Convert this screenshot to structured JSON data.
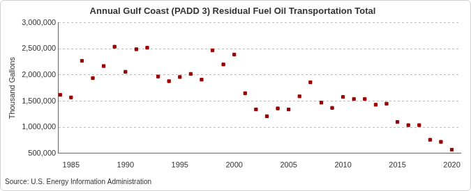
{
  "chart_data": {
    "type": "scatter",
    "title": "Annual Gulf Coast (PADD 3) Residual Fuel Oil Transportation Total",
    "y_label": "Thousand Gallons",
    "source": "Source: U.S. Energy Information Administration",
    "x": [
      1984,
      1985,
      1986,
      1987,
      1988,
      1989,
      1990,
      1991,
      1992,
      1993,
      1994,
      1995,
      1996,
      1997,
      1998,
      1999,
      2000,
      2001,
      2002,
      2003,
      2004,
      2005,
      2006,
      2007,
      2008,
      2009,
      2010,
      2011,
      2012,
      2013,
      2014,
      2015,
      2016,
      2017,
      2018,
      2019,
      2020
    ],
    "values": [
      1620000,
      1570000,
      2270000,
      1940000,
      2170000,
      2540000,
      2060000,
      2490000,
      2520000,
      1970000,
      1880000,
      1960000,
      2020000,
      1910000,
      2470000,
      2200000,
      2390000,
      1650000,
      1340000,
      1210000,
      1360000,
      1340000,
      1590000,
      1860000,
      1470000,
      1370000,
      1580000,
      1540000,
      1540000,
      1430000,
      1450000,
      1100000,
      1040000,
      1040000,
      760000,
      720000,
      570000
    ],
    "color": "#990000",
    "marker": "square",
    "xlim": [
      1983.8,
      2020.8
    ],
    "xticks": [
      1985,
      1990,
      1995,
      2000,
      2005,
      2010,
      2015,
      2020
    ],
    "ylim": [
      500000,
      3000000
    ],
    "yticks": [
      {
        "value": 500000,
        "label": "500,000"
      },
      {
        "value": 1000000,
        "label": "1,000,000"
      },
      {
        "value": 1500000,
        "label": "1,500,000"
      },
      {
        "value": 2000000,
        "label": "2,000,000"
      },
      {
        "value": 2500000,
        "label": "2,500,000"
      },
      {
        "value": 3000000,
        "label": "3,000,000"
      }
    ],
    "grid": true
  }
}
